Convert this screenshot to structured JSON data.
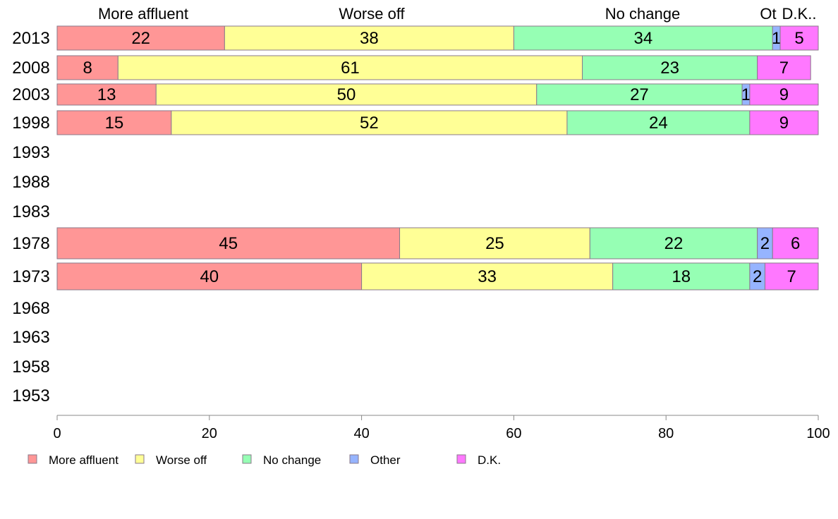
{
  "chart_data": {
    "type": "bar",
    "orientation": "horizontal",
    "stacked": true,
    "categories": [
      "2013",
      "2008",
      "2003",
      "1998",
      "1993",
      "1988",
      "1983",
      "1978",
      "1973",
      "1968",
      "1963",
      "1958",
      "1953"
    ],
    "series": [
      {
        "name": "More affluent",
        "color": "#ff9696",
        "values": [
          22,
          8,
          13,
          15,
          null,
          null,
          null,
          45,
          40,
          null,
          null,
          null,
          null
        ]
      },
      {
        "name": "Worse off",
        "color": "#ffff96",
        "values": [
          38,
          61,
          50,
          52,
          null,
          null,
          null,
          25,
          33,
          null,
          null,
          null,
          null
        ]
      },
      {
        "name": "No change",
        "color": "#96ffb4",
        "values": [
          34,
          23,
          27,
          24,
          null,
          null,
          null,
          22,
          18,
          null,
          null,
          null,
          null
        ]
      },
      {
        "name": "Other",
        "color": "#96b4ff",
        "values": [
          1,
          null,
          1,
          null,
          null,
          null,
          null,
          2,
          2,
          null,
          null,
          null,
          null
        ]
      },
      {
        "name": "D.K.",
        "color": "#ff78ff",
        "values": [
          5,
          7,
          9,
          9,
          null,
          null,
          null,
          6,
          7,
          null,
          null,
          null,
          null
        ]
      }
    ],
    "top_labels": [
      "More affluent",
      "Worse off",
      "No change",
      "Ot",
      "D.K.."
    ],
    "xlim": [
      0,
      100
    ],
    "xticks": [
      "0",
      "20",
      "40",
      "60",
      "80",
      "100"
    ],
    "legend_position": "bottom",
    "grid": false
  }
}
